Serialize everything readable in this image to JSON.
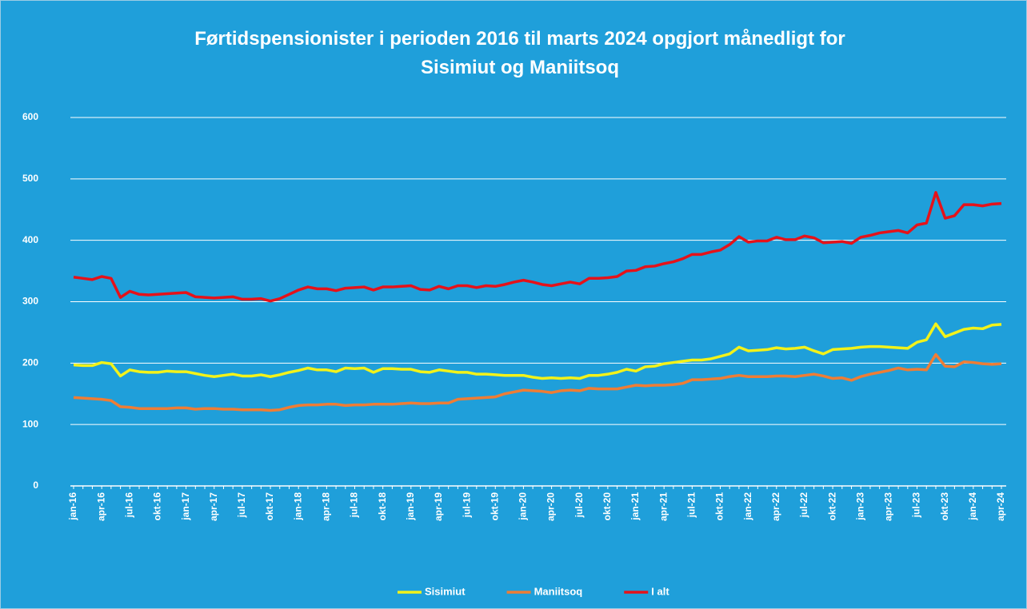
{
  "chart_data": {
    "type": "line",
    "title": [
      "Førtidspensionister i perioden 2016 til marts 2024 opgjort månedligt for",
      "Sisimiut og Maniitsoq"
    ],
    "categories": [
      "jan-16",
      null,
      null,
      "apr-16",
      null,
      null,
      "jul-16",
      null,
      null,
      "okt-16",
      null,
      null,
      "jan-17",
      null,
      null,
      "apr-17",
      null,
      null,
      "jul-17",
      null,
      null,
      "okt-17",
      null,
      null,
      "jan-18",
      null,
      null,
      "apr-18",
      null,
      null,
      "jul-18",
      null,
      null,
      "okt-18",
      null,
      null,
      "jan-19",
      null,
      null,
      "apr-19",
      null,
      null,
      "jul-19",
      null,
      null,
      "okt-19",
      null,
      null,
      "jan-20",
      null,
      null,
      "apr-20",
      null,
      null,
      "jul-20",
      null,
      null,
      "okt-20",
      null,
      null,
      "jan-21",
      null,
      null,
      "apr-21",
      null,
      null,
      "jul-21",
      null,
      null,
      "okt-21",
      null,
      null,
      "jan-22",
      null,
      null,
      "apr-22",
      null,
      null,
      "jul-22",
      null,
      null,
      "okt-22",
      null,
      null,
      "jan-23",
      null,
      null,
      "apr-23",
      null,
      null,
      "jul-23",
      null,
      null,
      "okt-23",
      null,
      null,
      "jan-24",
      null,
      null,
      "apr-24"
    ],
    "series": [
      {
        "name": "Sisimiut",
        "color": "#f2f21a",
        "values": [
          197,
          196,
          196,
          201,
          199,
          179,
          189,
          186,
          185,
          185,
          187,
          186,
          186,
          183,
          180,
          178,
          180,
          182,
          179,
          179,
          181,
          178,
          181,
          185,
          188,
          192,
          189,
          189,
          186,
          192,
          191,
          192,
          185,
          191,
          191,
          190,
          190,
          186,
          185,
          189,
          187,
          185,
          185,
          182,
          182,
          181,
          180,
          180,
          180,
          177,
          175,
          176,
          175,
          176,
          175,
          180,
          180,
          182,
          185,
          190,
          187,
          194,
          195,
          199,
          201,
          203,
          205,
          205,
          207,
          211,
          215,
          226,
          220,
          221,
          222,
          225,
          223,
          224,
          226,
          220,
          215,
          222,
          223,
          224,
          226,
          227,
          227,
          226,
          225,
          224,
          234,
          238,
          264,
          243,
          249,
          255,
          257,
          256,
          262,
          263
        ]
      },
      {
        "name": "Maniitsoq",
        "color": "#ee7d35",
        "values": [
          144,
          143,
          142,
          141,
          139,
          129,
          128,
          126,
          126,
          126,
          126,
          127,
          127,
          125,
          126,
          126,
          125,
          125,
          124,
          124,
          124,
          123,
          124,
          128,
          131,
          132,
          132,
          133,
          133,
          131,
          132,
          132,
          133,
          133,
          133,
          134,
          135,
          134,
          134,
          135,
          135,
          141,
          142,
          143,
          144,
          145,
          150,
          153,
          156,
          155,
          154,
          152,
          155,
          156,
          155,
          159,
          158,
          158,
          158,
          161,
          164,
          163,
          164,
          164,
          165,
          167,
          173,
          173,
          174,
          175,
          178,
          180,
          178,
          178,
          178,
          179,
          179,
          178,
          180,
          182,
          179,
          175,
          176,
          172,
          178,
          182,
          185,
          188,
          192,
          189,
          190,
          189,
          214,
          195,
          194,
          202,
          201,
          199,
          198,
          199
        ]
      },
      {
        "name": "I alt",
        "color": "#e5121a",
        "values": [
          340,
          338,
          336,
          341,
          338,
          307,
          317,
          312,
          311,
          312,
          313,
          314,
          315,
          308,
          307,
          306,
          307,
          308,
          304,
          304,
          305,
          301,
          305,
          312,
          319,
          324,
          321,
          321,
          318,
          322,
          323,
          324,
          319,
          324,
          324,
          325,
          326,
          320,
          319,
          325,
          321,
          326,
          326,
          323,
          326,
          325,
          328,
          332,
          335,
          332,
          328,
          326,
          329,
          332,
          329,
          338,
          338,
          339,
          341,
          350,
          351,
          357,
          358,
          362,
          365,
          370,
          377,
          377,
          381,
          384,
          393,
          406,
          397,
          399,
          399,
          405,
          401,
          401,
          407,
          404,
          396,
          397,
          398,
          395,
          405,
          408,
          412,
          414,
          416,
          412,
          425,
          428,
          478,
          436,
          440,
          458,
          458,
          456,
          459,
          460
        ]
      }
    ],
    "ylim": [
      0,
      600
    ],
    "yticks": [
      0,
      100,
      200,
      300,
      400,
      500,
      600
    ],
    "grid": true,
    "legend": "bottom"
  }
}
